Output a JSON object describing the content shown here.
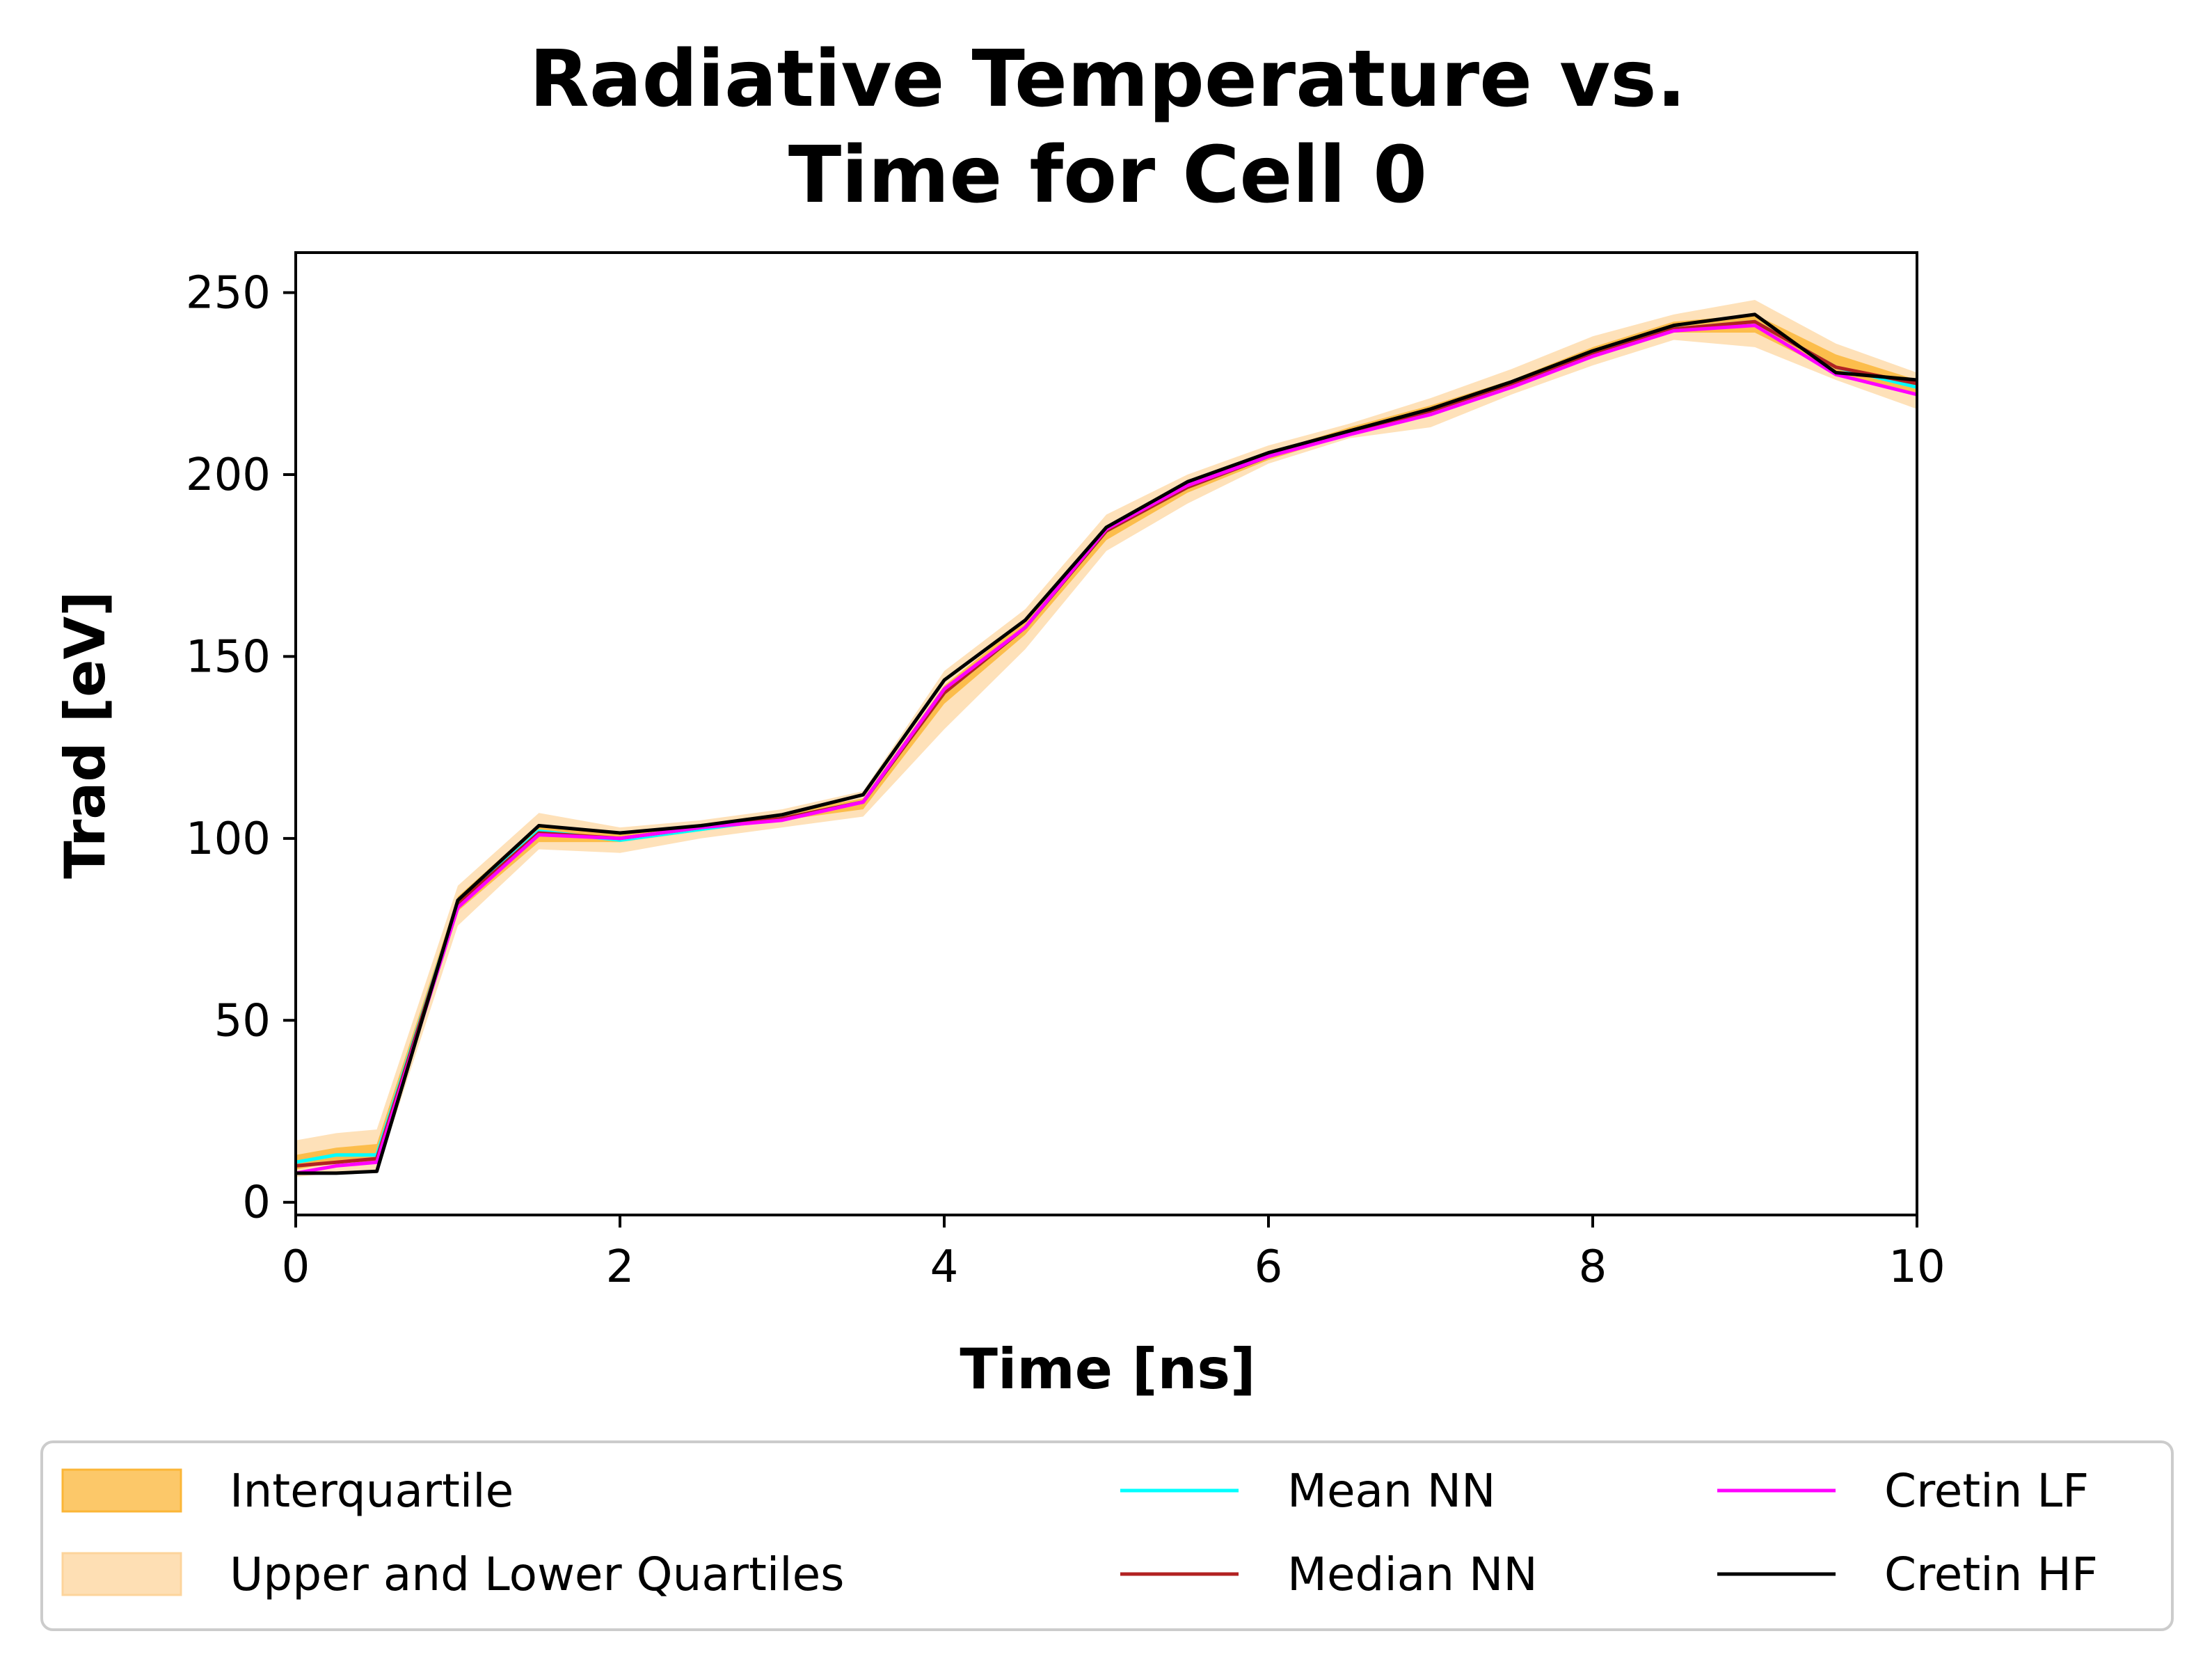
{
  "chart_data": {
    "type": "line",
    "title_lines": [
      "Radiative Temperature vs.",
      "Time for Cell 0"
    ],
    "xlabel": "Time [ns]",
    "ylabel": "Trad [eV]",
    "xlim": [
      0,
      10
    ],
    "ylim": [
      -3.5,
      261
    ],
    "xticks": [
      0,
      2,
      4,
      6,
      8,
      10
    ],
    "yticks": [
      0,
      50,
      100,
      150,
      200,
      250
    ],
    "x": [
      0,
      0.25,
      0.5,
      1.0,
      1.5,
      2.0,
      2.5,
      3.0,
      3.5,
      4.0,
      4.5,
      5.0,
      5.5,
      6.0,
      6.5,
      7.0,
      7.5,
      8.0,
      8.5,
      9.0,
      9.5,
      10.0
    ],
    "bands": [
      {
        "name": "Upper and Lower Quartiles",
        "color": "#fdd49b",
        "lower": [
          7,
          8,
          8,
          76,
          97,
          96,
          100,
          103,
          106,
          130,
          152,
          179,
          192,
          203,
          210,
          213,
          222,
          230,
          237,
          235,
          226,
          218
        ],
        "upper": [
          17,
          19,
          20,
          87,
          107,
          103,
          105,
          108,
          113,
          146,
          163,
          189,
          200,
          208,
          214,
          221,
          229,
          238,
          244,
          248,
          236,
          228
        ]
      },
      {
        "name": "Interquartile",
        "color": "#fbb637",
        "lower": [
          9,
          11,
          11,
          80,
          99,
          99,
          102,
          105,
          108,
          137,
          156,
          182,
          195,
          204,
          211,
          216,
          224,
          232,
          239,
          239,
          228,
          222
        ],
        "upper": [
          13,
          15,
          16,
          84,
          104,
          101,
          104,
          107,
          111,
          142,
          160,
          186,
          198,
          206,
          213,
          219,
          226,
          235,
          242,
          244,
          233,
          226
        ]
      }
    ],
    "series": [
      {
        "name": "Mean NN",
        "color": "#00ffff",
        "values": [
          11,
          13,
          13,
          82,
          102,
          99.5,
          102.5,
          105.5,
          110,
          140,
          158,
          184.5,
          196.5,
          205,
          211.5,
          217.5,
          225,
          233,
          240,
          242,
          229.5,
          224
        ]
      },
      {
        "name": "Median NN",
        "color": "#b22222",
        "values": [
          10,
          11,
          12,
          82,
          101.5,
          100,
          103,
          105.5,
          110,
          140,
          158,
          184.5,
          196.5,
          205,
          211.5,
          217.5,
          225,
          233,
          240,
          242,
          229.5,
          225
        ]
      },
      {
        "name": "Cretin LF",
        "color": "#ff00ff",
        "values": [
          8,
          10,
          11,
          81,
          101,
          100,
          103,
          105,
          110,
          141,
          158,
          185,
          197,
          205,
          211,
          216.5,
          224,
          232.5,
          239.5,
          241,
          227.5,
          222
        ]
      },
      {
        "name": "Cretin HF",
        "color": "#000000",
        "values": [
          8,
          8,
          8.5,
          83,
          103.5,
          101.5,
          103.5,
          106.5,
          112,
          143.5,
          160,
          185.5,
          198,
          206,
          212,
          218,
          225.5,
          234,
          241,
          244,
          228,
          226
        ]
      }
    ],
    "legend": {
      "placement": "bottom",
      "entries": [
        "Interquartile",
        "Upper and Lower Quartiles",
        "Mean NN",
        "Median NN",
        "Cretin LF",
        "Cretin HF"
      ]
    },
    "grid": false
  }
}
